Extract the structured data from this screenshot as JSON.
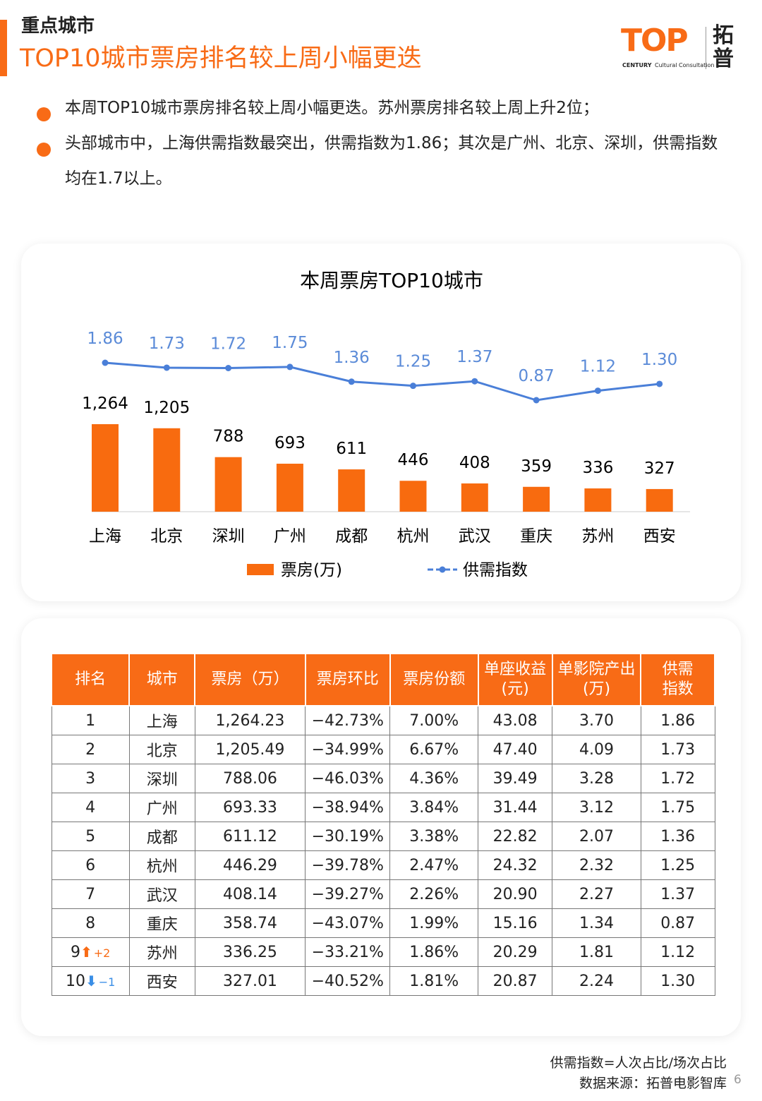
{
  "header": {
    "section": "重点城市",
    "title": "TOP10城市票房排名较上周小幅更迭"
  },
  "logo": {
    "mark": "TOP",
    "century": "CENTURY",
    "sub": "Cultural Consultation",
    "brand": "拓普"
  },
  "bullets": [
    "本周TOP10城市票房排名较上周小幅更迭。苏州票房排名较上周上升2位；",
    "头部城市中，上海供需指数最突出，供需指数为1.86；其次是广州、北京、深圳，供需指数均在1.7以上。"
  ],
  "chart_data": {
    "type": "bar_line",
    "title": "本周票房TOP10城市",
    "categories": [
      "上海",
      "北京",
      "深圳",
      "广州",
      "成都",
      "杭州",
      "武汉",
      "重庆",
      "苏州",
      "西安"
    ],
    "series": [
      {
        "name": "票房(万)",
        "type": "bar",
        "color": "#f86b0f",
        "values": [
          1264,
          1205,
          788,
          693,
          611,
          446,
          408,
          359,
          336,
          327
        ],
        "value_labels": [
          "1,264",
          "1,205",
          "788",
          "693",
          "611",
          "446",
          "408",
          "359",
          "336",
          "327"
        ]
      },
      {
        "name": "供需指数",
        "type": "line",
        "axis": "y2",
        "color": "#4a7fd8",
        "values": [
          1.86,
          1.73,
          1.72,
          1.75,
          1.36,
          1.25,
          1.37,
          0.87,
          1.12,
          1.3
        ],
        "value_labels": [
          "1.86",
          "1.73",
          "1.72",
          "1.75",
          "1.36",
          "1.25",
          "1.37",
          "0.87",
          "1.12",
          "1.30"
        ]
      }
    ]
  },
  "table": {
    "headers": [
      "排名",
      "城市",
      "票房（万）",
      "票房环比",
      "票房份额",
      "单座收益\n(元)",
      "单影院产出\n(万)",
      "供需\n指数"
    ],
    "rows": [
      {
        "cells": [
          "1",
          "上海",
          "1,264.23",
          "−42.73%",
          "7.00%",
          "43.08",
          "3.70",
          "1.86"
        ]
      },
      {
        "cells": [
          "2",
          "北京",
          "1,205.49",
          "−34.99%",
          "6.67%",
          "47.40",
          "4.09",
          "1.73"
        ]
      },
      {
        "cells": [
          "3",
          "深圳",
          "788.06",
          "−46.03%",
          "4.36%",
          "39.49",
          "3.28",
          "1.72"
        ]
      },
      {
        "cells": [
          "4",
          "广州",
          "693.33",
          "−38.94%",
          "3.84%",
          "31.44",
          "3.12",
          "1.75"
        ]
      },
      {
        "cells": [
          "5",
          "成都",
          "611.12",
          "−30.19%",
          "3.38%",
          "22.82",
          "2.07",
          "1.36"
        ]
      },
      {
        "cells": [
          "6",
          "杭州",
          "446.29",
          "−39.78%",
          "2.47%",
          "24.32",
          "2.32",
          "1.25"
        ]
      },
      {
        "cells": [
          "7",
          "武汉",
          "408.14",
          "−39.27%",
          "2.26%",
          "20.90",
          "2.27",
          "1.37"
        ]
      },
      {
        "cells": [
          "8",
          "重庆",
          "358.74",
          "−43.07%",
          "1.99%",
          "15.16",
          "1.34",
          "0.87"
        ]
      },
      {
        "cells": [
          "9",
          "苏州",
          "336.25",
          "−33.21%",
          "1.86%",
          "20.29",
          "1.81",
          "1.12"
        ],
        "change": "+2"
      },
      {
        "cells": [
          "10",
          "西安",
          "327.01",
          "−40.52%",
          "1.81%",
          "20.87",
          "2.24",
          "1.30"
        ],
        "change": "−1"
      }
    ]
  },
  "footer": {
    "note": "供需指数=人次占比/场次占比",
    "source": "数据来源：拓普电影智库",
    "page": "6"
  }
}
